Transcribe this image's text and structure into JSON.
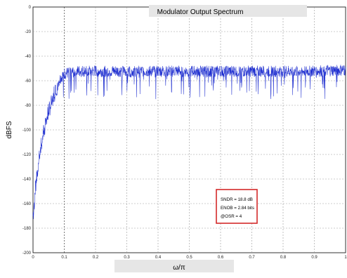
{
  "chart_data": {
    "type": "line",
    "title": "Modulator Output Spectrum",
    "xlabel": "ω/π",
    "ylabel": "dBFS",
    "xlim": [
      0,
      1
    ],
    "ylim": [
      -200,
      0
    ],
    "x_ticks": [
      "0",
      "0.1",
      "0.2",
      "0.3",
      "0.4",
      "0.5",
      "0.6",
      "0.7",
      "0.8",
      "0.9",
      "1"
    ],
    "y_ticks": [
      "0",
      "-20",
      "-40",
      "-60",
      "-80",
      "-100",
      "-120",
      "-140",
      "-160",
      "-180",
      "-200"
    ],
    "grid": true,
    "series_color": "#1f2fd0",
    "series": [
      {
        "x": [
          0.0,
          0.01,
          0.02,
          0.03,
          0.04,
          0.05,
          0.06,
          0.07,
          0.08,
          0.09,
          0.1,
          0.15,
          0.2,
          0.3,
          0.4,
          0.5,
          0.6,
          0.7,
          0.8,
          0.9,
          1.0
        ],
        "values": [
          -170,
          -140,
          -120,
          -105,
          -93,
          -83,
          -75,
          -68,
          -61,
          -57,
          -54,
          -52,
          -52,
          -52,
          -52,
          -52,
          -52,
          -52,
          -52,
          -52,
          -51
        ]
      }
    ],
    "annotations": [
      "SNDR = 18.8 dB",
      "ENOB = 2.84 bits",
      "@OSR =   4"
    ],
    "annotation_border_color": "#d42a2a"
  }
}
